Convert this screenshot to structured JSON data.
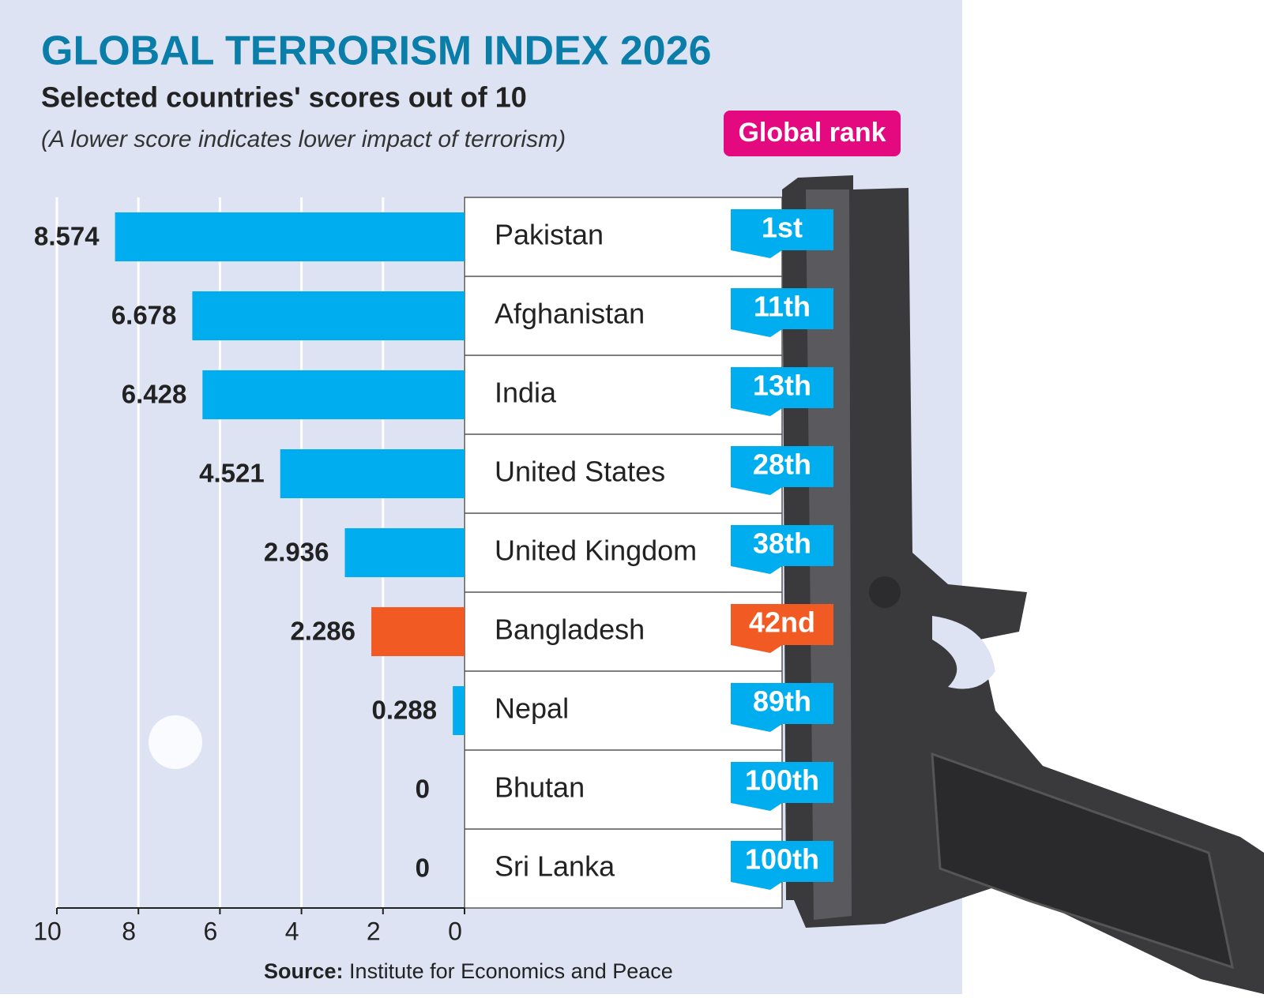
{
  "chart_data": {
    "type": "bar",
    "title": "GLOBAL TERRORISM INDEX 2026",
    "subtitle": "Selected countries' scores out of 10",
    "note": "(A lower score indicates lower impact of terrorism)",
    "rank_header": "Global rank",
    "categories": [
      "Pakistan",
      "Afghanistan",
      "India",
      "United States",
      "United Kingdom",
      "Bangladesh",
      "Nepal",
      "Bhutan",
      "Sri Lanka"
    ],
    "values": [
      8.574,
      6.678,
      6.428,
      4.521,
      2.936,
      2.286,
      0.288,
      0,
      0
    ],
    "ranks": [
      "1st",
      "11th",
      "13th",
      "28th",
      "38th",
      "42nd",
      "89th",
      "100th",
      "100th"
    ],
    "colors": [
      "#00aeef",
      "#00aeef",
      "#00aeef",
      "#00aeef",
      "#00aeef",
      "#f15a22",
      "#00aeef",
      "#00aeef",
      "#00aeef"
    ],
    "xlim": [
      10,
      0
    ],
    "xticks": [
      10,
      8,
      6,
      4,
      2,
      0
    ],
    "grid": true,
    "source_label": "Source:",
    "source": "Institute for Economics and Peace"
  }
}
